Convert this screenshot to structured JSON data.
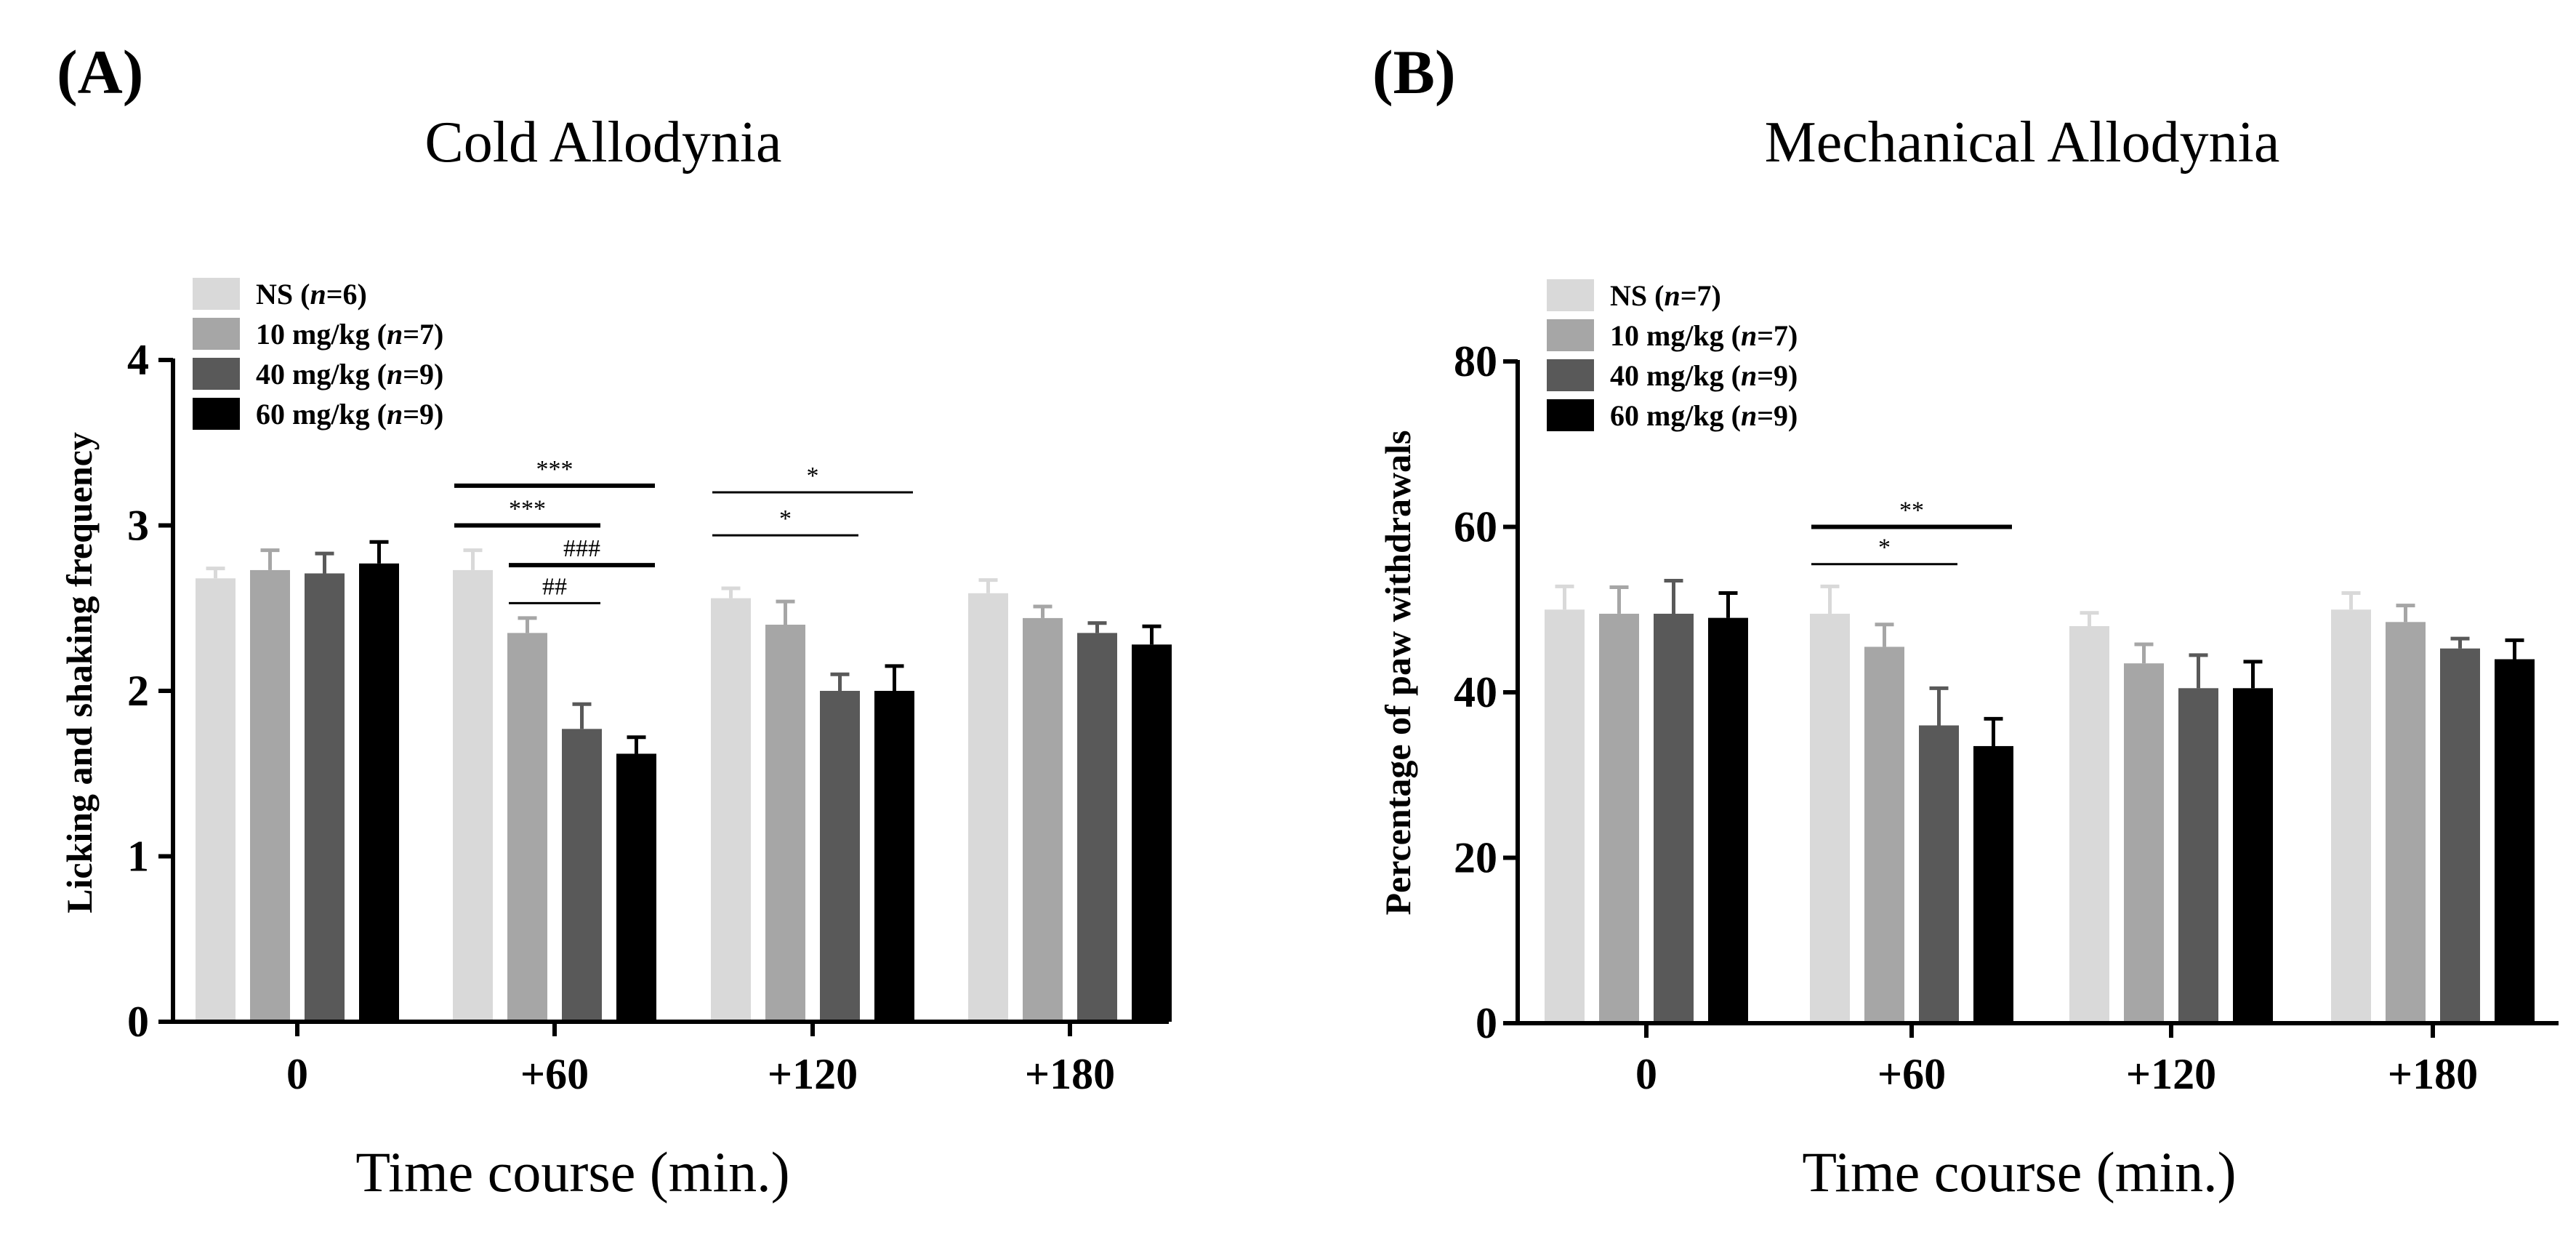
{
  "chart_data": [
    {
      "type": "bar",
      "panel_label": "(A)",
      "title": "Cold Allodynia",
      "xlabel": "Time course (min.)",
      "ylabel": "Licking and shaking frequency",
      "ylim": [
        0,
        4
      ],
      "yticks": [
        "0",
        "1",
        "2",
        "3",
        "4"
      ],
      "grid": false,
      "legend_position": "top-left",
      "categories": [
        "0",
        "+60",
        "+120",
        "+180"
      ],
      "series": [
        {
          "name": "NS",
          "n": "6",
          "color": "#d9d9d9",
          "values": [
            2.68,
            2.73,
            2.56,
            2.59
          ],
          "errors": [
            0.06,
            0.12,
            0.06,
            0.08
          ]
        },
        {
          "name": "10 mg/kg",
          "n": "7",
          "color": "#a6a6a6",
          "values": [
            2.73,
            2.35,
            2.4,
            2.44
          ],
          "errors": [
            0.12,
            0.09,
            0.14,
            0.07
          ]
        },
        {
          "name": "40 mg/kg",
          "n": "9",
          "color": "#595959",
          "values": [
            2.71,
            1.77,
            2.0,
            2.35
          ],
          "errors": [
            0.12,
            0.15,
            0.1,
            0.06
          ]
        },
        {
          "name": "60 mg/kg",
          "n": "9",
          "color": "#000000",
          "values": [
            2.77,
            1.62,
            2.0,
            2.28
          ],
          "errors": [
            0.13,
            0.1,
            0.15,
            0.11
          ]
        }
      ],
      "significance": [
        {
          "label": "***",
          "group": 1,
          "from": 0,
          "to": 3,
          "y": 3.24,
          "bold": true
        },
        {
          "label": "***",
          "group": 1,
          "from": 0,
          "to": 2,
          "y": 3.0,
          "bold": true
        },
        {
          "label": "###",
          "group": 1,
          "from": 1,
          "to": 3,
          "y": 2.76,
          "bold": true
        },
        {
          "label": "##",
          "group": 1,
          "from": 1,
          "to": 2,
          "y": 2.53,
          "bold": false
        },
        {
          "label": "*",
          "group": 2,
          "from": 0,
          "to": 3,
          "y": 3.2,
          "bold": false
        },
        {
          "label": "*",
          "group": 2,
          "from": 0,
          "to": 2,
          "y": 2.94,
          "bold": false
        }
      ]
    },
    {
      "type": "bar",
      "panel_label": "(B)",
      "title": "Mechanical Allodynia",
      "xlabel": "Time course (min.)",
      "ylabel": "Percentage of paw withdrawals",
      "ylim": [
        0,
        80
      ],
      "yticks": [
        "0",
        "20",
        "40",
        "60",
        "80"
      ],
      "grid": false,
      "legend_position": "top-left",
      "categories": [
        "0",
        "+60",
        "+120",
        "+180"
      ],
      "series": [
        {
          "name": "NS",
          "n": "7",
          "color": "#d9d9d9",
          "values": [
            50.0,
            49.5,
            48.0,
            50.0
          ],
          "errors": [
            2.8,
            3.3,
            1.6,
            2.0
          ]
        },
        {
          "name": "10 mg/kg",
          "n": "7",
          "color": "#a6a6a6",
          "values": [
            49.5,
            45.5,
            43.5,
            48.5
          ],
          "errors": [
            3.2,
            2.7,
            2.3,
            2.0
          ]
        },
        {
          "name": "40 mg/kg",
          "n": "9",
          "color": "#595959",
          "values": [
            49.5,
            36.0,
            40.5,
            45.3
          ],
          "errors": [
            4.0,
            4.5,
            4.0,
            1.2
          ]
        },
        {
          "name": "60 mg/kg",
          "n": "9",
          "color": "#000000",
          "values": [
            49.0,
            33.5,
            40.5,
            44.0
          ],
          "errors": [
            3.0,
            3.3,
            3.2,
            2.3
          ]
        }
      ],
      "significance": [
        {
          "label": "**",
          "group": 1,
          "from": 0,
          "to": 3,
          "y": 60.0,
          "bold": true
        },
        {
          "label": "*",
          "group": 1,
          "from": 0,
          "to": 2,
          "y": 55.5,
          "bold": false
        }
      ]
    }
  ]
}
